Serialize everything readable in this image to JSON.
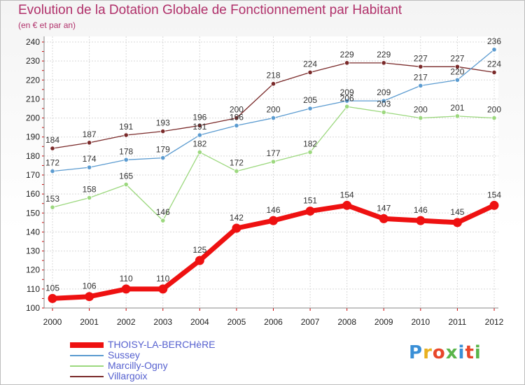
{
  "title": "Evolution de la Dotation Globale de Fonctionnement par Habitant",
  "subtitle": "(en € et par an)",
  "logo": {
    "text": "Proxiti",
    "colors": [
      "#3a8fd6",
      "#e8b020",
      "#e8462a",
      "#5ab54a",
      "#3a8fd6",
      "#e8462a",
      "#5ab54a"
    ]
  },
  "chart_data": {
    "type": "line",
    "x": [
      "2000",
      "2001",
      "2002",
      "2003",
      "2004",
      "2005",
      "2006",
      "2007",
      "2008",
      "2009",
      "2010",
      "2011",
      "2012"
    ],
    "ylim": [
      100,
      240
    ],
    "yticks": [
      100,
      110,
      120,
      130,
      140,
      150,
      160,
      170,
      180,
      190,
      200,
      210,
      220,
      230,
      240
    ],
    "grid": true,
    "legend_position": "bottom-left",
    "series": [
      {
        "name": "Villargoix",
        "color": "#7a2a2a",
        "values": [
          184,
          187,
          191,
          193,
          196,
          200,
          218,
          224,
          229,
          229,
          227,
          227,
          224
        ]
      },
      {
        "name": "Sussey",
        "color": "#5b9bd0",
        "values": [
          172,
          174,
          178,
          179,
          191,
          196,
          200,
          205,
          209,
          209,
          217,
          220,
          236
        ]
      },
      {
        "name": "Marcilly-Ogny",
        "color": "#9cd87e",
        "values": [
          153,
          158,
          165,
          146,
          182,
          172,
          177,
          182,
          206,
          203,
          200,
          201,
          200
        ]
      },
      {
        "name": "THOISY-LA-BERCHèRE",
        "color": "#ee1111",
        "values": [
          105,
          106,
          110,
          110,
          125,
          142,
          146,
          151,
          154,
          147,
          146,
          145,
          154
        ]
      }
    ]
  },
  "legend": [
    {
      "name": "THOISY-LA-BERCHèRE",
      "color": "#ee1111"
    },
    {
      "name": "Sussey",
      "color": "#5b9bd0"
    },
    {
      "name": "Marcilly-Ogny",
      "color": "#9cd87e"
    },
    {
      "name": "Villargoix",
      "color": "#7a2a2a"
    }
  ]
}
